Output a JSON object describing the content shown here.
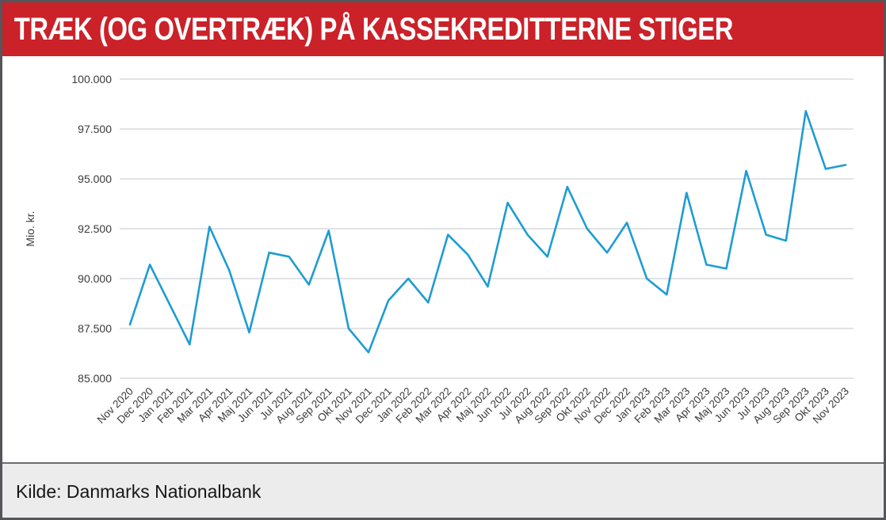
{
  "header": {
    "title": "TRÆK (OG OVERTRÆK) PÅ KASSEKREDITTERNE STIGER",
    "background": "#cb2129",
    "text_color": "#ffffff"
  },
  "footer": {
    "source": "Kilde: Danmarks Nationalbank",
    "background": "#ececec"
  },
  "chart_data": {
    "type": "line",
    "title": "",
    "xlabel": "",
    "ylabel": "Mio. kr.",
    "ylim": [
      85000,
      100000
    ],
    "y_ticks": [
      85000,
      87500,
      90000,
      92500,
      95000,
      97500,
      100000
    ],
    "y_tick_labels": [
      "85.000",
      "87.500",
      "90.000",
      "92.500",
      "95.000",
      "97.500",
      "100.000"
    ],
    "grid": true,
    "legend": "none",
    "line_color": "#1e9cd2",
    "grid_color": "#c3c7ce",
    "categories": [
      "Nov 2020",
      "Dec 2020",
      "Jan 2021",
      "Feb 2021",
      "Mar 2021",
      "Apr 2021",
      "Maj 2021",
      "Jun 2021",
      "Jul 2021",
      "Aug 2021",
      "Sep 2021",
      "Okt 2021",
      "Nov 2021",
      "Dec 2021",
      "Jan 2022",
      "Feb 2022",
      "Mar 2022",
      "Apr 2022",
      "Maj 2022",
      "Jun 2022",
      "Jul 2022",
      "Aug 2022",
      "Sep 2022",
      "Okt 2022",
      "Nov 2022",
      "Dec 2022",
      "Jan 2023",
      "Feb 2023",
      "Mar 2023",
      "Apr 2023",
      "Maj 2023",
      "Jun 2023",
      "Jul 2023",
      "Aug 2023",
      "Sep 2023",
      "Okt 2023",
      "Nov 2023"
    ],
    "values": [
      87700,
      90700,
      88700,
      86700,
      92600,
      90400,
      87300,
      91300,
      91100,
      89700,
      92400,
      87500,
      86300,
      88900,
      90000,
      88800,
      92200,
      91200,
      89600,
      93800,
      92200,
      91100,
      94600,
      92500,
      91300,
      92800,
      90000,
      89200,
      94300,
      90700,
      90500,
      95400,
      92200,
      91900,
      98400,
      95500,
      95700
    ]
  }
}
